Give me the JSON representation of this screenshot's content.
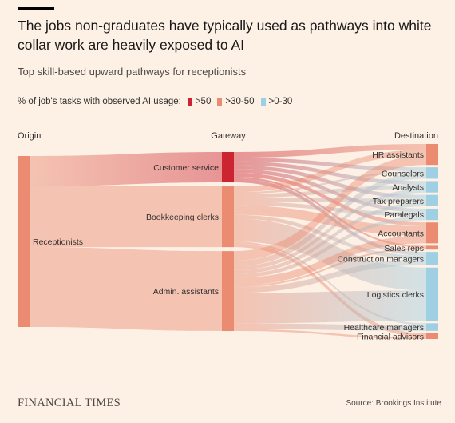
{
  "title": "The jobs non-graduates have typically used as pathways into white collar work are heavily exposed to AI",
  "subtitle": "Top skill-based upward pathways for receptionists",
  "legend": {
    "label": "% of job's tasks with observed AI usage:",
    "items": [
      {
        "label": ">50",
        "color": "#cc2431"
      },
      {
        "label": ">30-50",
        "color": "#ea8b72"
      },
      {
        "label": ">0-30",
        "color": "#9fcfe3"
      }
    ]
  },
  "chart_data": {
    "type": "sankey",
    "columns": [
      {
        "header": "Origin"
      },
      {
        "header": "Gateway"
      },
      {
        "header": "Destination"
      }
    ],
    "nodes": [
      {
        "id": "receptionists",
        "label": "Receptionists",
        "column": 0,
        "exposure": ">30-50"
      },
      {
        "id": "customer_service",
        "label": "Customer service",
        "column": 1,
        "exposure": ">50"
      },
      {
        "id": "bookkeeping",
        "label": "Bookkeeping clerks",
        "column": 1,
        "exposure": ">30-50"
      },
      {
        "id": "admin",
        "label": "Admin. assistants",
        "column": 1,
        "exposure": ">30-50"
      },
      {
        "id": "hr",
        "label": "HR assistants",
        "column": 2,
        "exposure": ">30-50"
      },
      {
        "id": "counselors",
        "label": "Counselors",
        "column": 2,
        "exposure": ">0-30"
      },
      {
        "id": "analysts",
        "label": "Analysts",
        "column": 2,
        "exposure": ">0-30"
      },
      {
        "id": "tax",
        "label": "Tax preparers",
        "column": 2,
        "exposure": ">0-30"
      },
      {
        "id": "paralegals",
        "label": "Paralegals",
        "column": 2,
        "exposure": ">0-30"
      },
      {
        "id": "accountants",
        "label": "Accountants",
        "column": 2,
        "exposure": ">30-50"
      },
      {
        "id": "sales",
        "label": "Sales reps",
        "column": 2,
        "exposure": ">30-50"
      },
      {
        "id": "construction",
        "label": "Construction managers",
        "column": 2,
        "exposure": ">0-30"
      },
      {
        "id": "logistics",
        "label": "Logistics clerks",
        "column": 2,
        "exposure": ">0-30"
      },
      {
        "id": "healthcare",
        "label": "Healthcare managers",
        "column": 2,
        "exposure": ">0-30"
      },
      {
        "id": "financial",
        "label": "Financial advisors",
        "column": 2,
        "exposure": ">30-50"
      }
    ],
    "links": [
      {
        "source": "receptionists",
        "target": "customer_service",
        "value": 16
      },
      {
        "source": "receptionists",
        "target": "bookkeeping",
        "value": 32
      },
      {
        "source": "receptionists",
        "target": "admin",
        "value": 42
      },
      {
        "source": "customer_service",
        "target": "hr",
        "value": 3
      },
      {
        "source": "customer_service",
        "target": "counselors",
        "value": 2
      },
      {
        "source": "customer_service",
        "target": "analysts",
        "value": 2
      },
      {
        "source": "customer_service",
        "target": "tax",
        "value": 2
      },
      {
        "source": "customer_service",
        "target": "paralegals",
        "value": 2
      },
      {
        "source": "customer_service",
        "target": "accountants",
        "value": 2
      },
      {
        "source": "customer_service",
        "target": "sales",
        "value": 1
      },
      {
        "source": "customer_service",
        "target": "construction",
        "value": 2
      },
      {
        "source": "bookkeeping",
        "target": "hr",
        "value": 3
      },
      {
        "source": "bookkeeping",
        "target": "counselors",
        "value": 1
      },
      {
        "source": "bookkeeping",
        "target": "analysts",
        "value": 2
      },
      {
        "source": "bookkeeping",
        "target": "tax",
        "value": 2
      },
      {
        "source": "bookkeeping",
        "target": "paralegals",
        "value": 2
      },
      {
        "source": "bookkeeping",
        "target": "accountants",
        "value": 5
      },
      {
        "source": "bookkeeping",
        "target": "construction",
        "value": 2
      },
      {
        "source": "bookkeeping",
        "target": "logistics",
        "value": 12
      },
      {
        "source": "bookkeeping",
        "target": "healthcare",
        "value": 1
      },
      {
        "source": "bookkeeping",
        "target": "financial",
        "value": 2
      },
      {
        "source": "admin",
        "target": "hr",
        "value": 5
      },
      {
        "source": "admin",
        "target": "counselors",
        "value": 3
      },
      {
        "source": "admin",
        "target": "analysts",
        "value": 2
      },
      {
        "source": "admin",
        "target": "tax",
        "value": 2
      },
      {
        "source": "admin",
        "target": "paralegals",
        "value": 2
      },
      {
        "source": "admin",
        "target": "accountants",
        "value": 4
      },
      {
        "source": "admin",
        "target": "sales",
        "value": 1
      },
      {
        "source": "admin",
        "target": "construction",
        "value": 3
      },
      {
        "source": "admin",
        "target": "logistics",
        "value": 16
      },
      {
        "source": "admin",
        "target": "healthcare",
        "value": 3
      },
      {
        "source": "admin",
        "target": "financial",
        "value": 1
      }
    ]
  },
  "footer": {
    "logo": "FINANCIAL TIMES",
    "source": "Source: Brookings Institute"
  }
}
